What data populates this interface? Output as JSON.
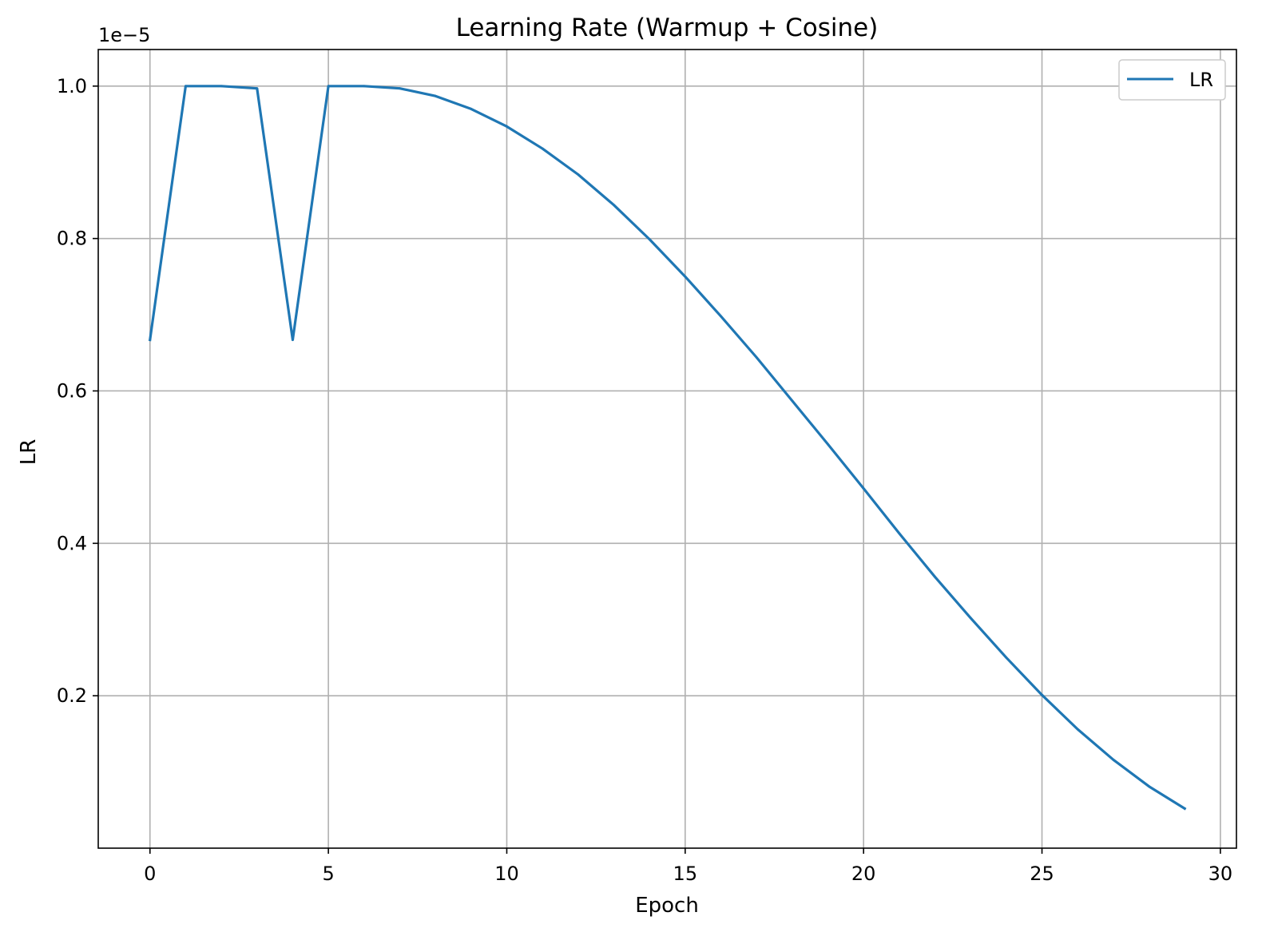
{
  "chart_data": {
    "type": "line",
    "title": "Learning Rate (Warmup + Cosine)",
    "xlabel": "Epoch",
    "ylabel": "LR",
    "y_offset_label": "1e−5",
    "xlim": [
      -1.45,
      30.45
    ],
    "ylim": [
      0.0,
      1.048
    ],
    "x_ticks": [
      0,
      5,
      10,
      15,
      20,
      25,
      30
    ],
    "x_tick_labels": [
      "0",
      "5",
      "10",
      "15",
      "20",
      "25",
      "30"
    ],
    "y_ticks": [
      0.2,
      0.4,
      0.6,
      0.8,
      1.0
    ],
    "y_tick_labels": [
      "0.2",
      "0.4",
      "0.6",
      "0.8",
      "1.0"
    ],
    "grid": true,
    "legend_position": "top-right",
    "series": [
      {
        "name": "LR",
        "color": "#1f77b4",
        "x": [
          0,
          1,
          2,
          3,
          4,
          5,
          6,
          7,
          8,
          9,
          10,
          11,
          12,
          13,
          14,
          15,
          16,
          17,
          18,
          19,
          20,
          21,
          22,
          23,
          24,
          25,
          26,
          27,
          28,
          29
        ],
        "y": [
          0.667,
          1.0,
          1.0,
          0.997,
          0.667,
          1.0,
          1.0,
          0.997,
          0.987,
          0.97,
          0.947,
          0.918,
          0.884,
          0.844,
          0.799,
          0.75,
          0.698,
          0.644,
          0.587,
          0.53,
          0.472,
          0.413,
          0.356,
          0.302,
          0.25,
          0.201,
          0.156,
          0.116,
          0.081,
          0.052
        ]
      }
    ]
  }
}
